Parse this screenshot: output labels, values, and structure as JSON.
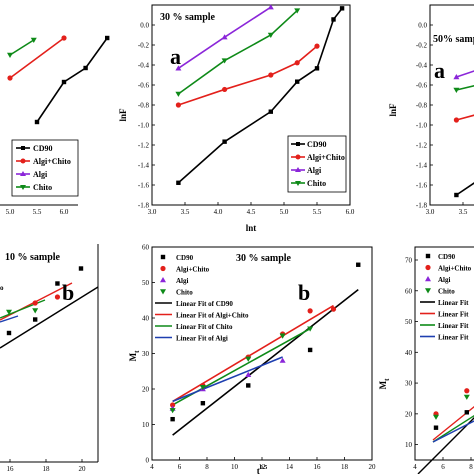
{
  "colors": {
    "CD90": "#000000",
    "Algi+Chito": "#e3201b",
    "Algi": "#8b26d9",
    "Chito": "#0e8a18",
    "fit_Algi": "#1e3fb0"
  },
  "chart_data": [
    {
      "id": "top_left",
      "type": "line",
      "x_ticks": [
        "5.0",
        "5.5",
        "6.0"
      ],
      "series": [
        {
          "name": "CD90",
          "x": [
            5.25,
            5.5,
            5.7,
            5.9
          ],
          "y": [
            -0.72,
            -0.32,
            -0.18,
            0.12
          ]
        },
        {
          "name": "Algi+Chito",
          "x": [
            5.0,
            5.5
          ],
          "y": [
            -0.28,
            0.12
          ]
        },
        {
          "name": "Chito",
          "x": [
            5.0,
            5.22
          ],
          "y": [
            -0.05,
            0.1
          ]
        }
      ]
    },
    {
      "id": "top_middle",
      "type": "line",
      "title": "30 % sample",
      "panel_letter": "a",
      "xlabel": "lnt",
      "ylabel": "lnF",
      "xlim": [
        3.0,
        6.0
      ],
      "ylim": [
        -1.8,
        0.0
      ],
      "x_ticks": [
        "3.0",
        "3.5",
        "4.0",
        "4.5",
        "5.0",
        "5.5",
        "6.0"
      ],
      "y_ticks": [
        "0.0",
        "-0.2",
        "-0.4",
        "-0.6",
        "-0.8",
        "-1.0",
        "-1.2",
        "-1.4",
        "-1.6",
        "-1.8"
      ],
      "legend_position": "bottom-right",
      "legend": [
        "CD90",
        "Algi+Chito",
        "Algi",
        "Chito"
      ],
      "series": [
        {
          "name": "CD90",
          "x": [
            3.4,
            4.1,
            4.8,
            5.2,
            5.5,
            5.75,
            5.88
          ],
          "y": [
            -1.6,
            -1.23,
            -0.96,
            -0.69,
            -0.57,
            -0.13,
            -0.03
          ]
        },
        {
          "name": "Algi+Chito",
          "x": [
            3.4,
            4.1,
            4.8,
            5.2,
            5.5
          ],
          "y": [
            -0.9,
            -0.76,
            -0.63,
            -0.52,
            -0.37
          ]
        },
        {
          "name": "Algi",
          "x": [
            3.4,
            4.1,
            4.8
          ],
          "y": [
            -0.57,
            -0.29,
            -0.02
          ]
        },
        {
          "name": "Chito",
          "x": [
            3.4,
            4.1,
            4.8,
            5.2
          ],
          "y": [
            -0.8,
            -0.5,
            -0.27,
            -0.05
          ]
        }
      ]
    },
    {
      "id": "top_right",
      "type": "line",
      "title": "50% samp",
      "panel_letter": "a",
      "ylabel": "lnF",
      "x_ticks": [
        "3.0",
        "3.5",
        "4.0"
      ],
      "y_ticks": [
        "0.0",
        "-0.2",
        "-0.4",
        "-0.6",
        "-0.8",
        "-1.0",
        "-1.2",
        "-1.4",
        "-1.6",
        "-1.8"
      ],
      "series": [
        {
          "name": "CD90",
          "x": [
            3.4,
            3.85
          ],
          "y": [
            -1.7,
            -1.5
          ]
        },
        {
          "name": "Algi+Chito",
          "x": [
            3.4,
            3.85
          ],
          "y": [
            -0.95,
            -0.87
          ]
        },
        {
          "name": "Algi",
          "x": [
            3.4,
            3.85
          ],
          "y": [
            -0.52,
            -0.42
          ]
        },
        {
          "name": "Chito",
          "x": [
            3.4,
            3.85
          ],
          "y": [
            -0.65,
            -0.58
          ]
        }
      ]
    },
    {
      "id": "bottom_left",
      "type": "scatter",
      "title": "10 % sample",
      "panel_letter": "b",
      "legend": [
        "o"
      ],
      "x_ticks": [
        "16",
        "18",
        "20"
      ],
      "series": [
        {
          "name": "CD90",
          "x": [
            13.5,
            15.5,
            17.2,
            19.0
          ],
          "y": [
            24.5,
            29.0,
            41.0,
            46.0
          ]
        },
        {
          "name": "Algi+Chito",
          "x": [
            15.5,
            17.2
          ],
          "y": [
            34.5,
            36.5
          ]
        },
        {
          "name": "Chito",
          "x": [
            13.5,
            15.5
          ],
          "y": [
            31.5,
            32.0
          ]
        }
      ]
    },
    {
      "id": "bottom_middle",
      "type": "scatter",
      "title": "30 % sample",
      "panel_letter": "b",
      "xlabel": "t",
      "xlabel_sup": "0.5",
      "ylabel": "M",
      "ylabel_sub": "t",
      "xlim": [
        4,
        20
      ],
      "ylim": [
        0,
        60
      ],
      "x_ticks": [
        "4",
        "6",
        "8",
        "10",
        "12",
        "14",
        "16",
        "18",
        "20"
      ],
      "y_ticks": [
        "0",
        "10",
        "20",
        "30",
        "40",
        "50",
        "60"
      ],
      "legend_position": "top-left",
      "legend": [
        "CD90",
        "Algi+Chito",
        "Algi",
        "Chito",
        "Linear Fit of CD90",
        "Linear Fit of Algi+Chito",
        "Linear Fit of Chito",
        "Linear Fit of Algi"
      ],
      "series": [
        {
          "name": "CD90",
          "x": [
            5.5,
            7.7,
            11.0,
            15.5,
            19.0
          ],
          "y": [
            11.5,
            16.0,
            21.0,
            31.0,
            55.0
          ]
        },
        {
          "name": "Algi+Chito",
          "x": [
            5.5,
            7.7,
            11.0,
            13.5,
            15.5,
            17.2
          ],
          "y": [
            15.5,
            21.0,
            29.0,
            35.5,
            42.0,
            42.5
          ]
        },
        {
          "name": "Algi",
          "x": [
            5.5,
            7.7,
            11.0,
            13.5
          ],
          "y": [
            14.5,
            20.0,
            24.0,
            28.0
          ]
        },
        {
          "name": "Chito",
          "x": [
            5.5,
            7.7,
            11.0,
            13.5,
            15.5
          ],
          "y": [
            14.0,
            20.5,
            28.5,
            35.0,
            37.0
          ]
        }
      ],
      "fits": [
        {
          "name": "Linear Fit of CD90",
          "x": [
            5.5,
            19.0
          ],
          "y": [
            7.0,
            48.0
          ]
        },
        {
          "name": "Linear Fit of Algi+Chito",
          "x": [
            5.5,
            17.2
          ],
          "y": [
            16.5,
            43.5
          ]
        },
        {
          "name": "Linear Fit of Chito",
          "x": [
            5.5,
            15.5
          ],
          "y": [
            15.5,
            37.0
          ]
        },
        {
          "name": "Linear Fit of Algi",
          "x": [
            5.5,
            13.5
          ],
          "y": [
            16.5,
            29.0
          ]
        }
      ]
    },
    {
      "id": "bottom_right",
      "type": "scatter",
      "ylabel": "M",
      "ylabel_sub": "t",
      "legend_position": "top-left",
      "legend": [
        "CD90",
        "Algi+Chito",
        "Algi",
        "Chito",
        "Linear Fit",
        "Linear Fit",
        "Linear Fit",
        "Linear Fit"
      ],
      "x_ticks": [
        "4",
        "6",
        "8"
      ],
      "y_ticks": [
        "10",
        "20",
        "30",
        "40",
        "50",
        "60",
        "70"
      ],
      "series": [
        {
          "name": "CD90",
          "x": [
            5.5,
            7.7
          ],
          "y": [
            15.5,
            20.5
          ]
        },
        {
          "name": "Algi+Chito",
          "x": [
            5.5,
            7.7
          ],
          "y": [
            20.0,
            27.5
          ]
        },
        {
          "name": "Chito",
          "x": [
            5.5,
            7.7
          ],
          "y": [
            19.0,
            25.5
          ]
        }
      ]
    }
  ]
}
